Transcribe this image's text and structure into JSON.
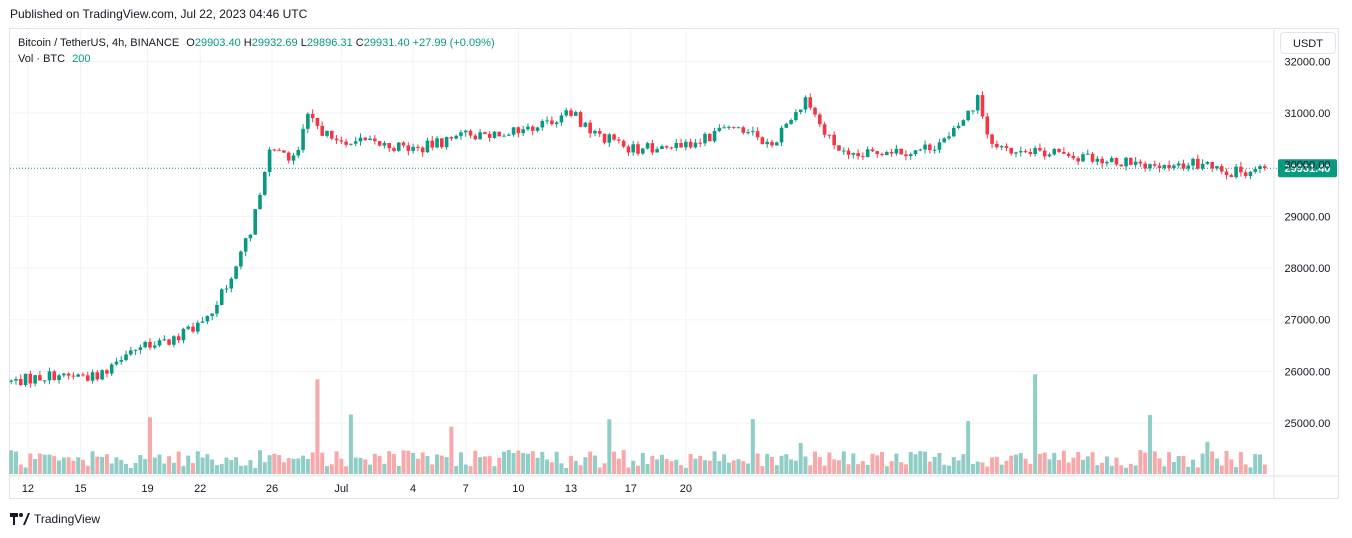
{
  "published": "Published on TradingView.com, Jul 22, 2023 04:46 UTC",
  "legend": {
    "symbol": "Bitcoin / TetherUS, 4h, BINANCE",
    "open_label": "O",
    "open": "29903.40",
    "high_label": "H",
    "high": "29932.69",
    "low_label": "L",
    "low": "29896.31",
    "close_label": "C",
    "close": "29931.40",
    "change": "+27.99 (+0.09%)",
    "vol_label": "Vol · BTC",
    "vol_value": "200"
  },
  "currency_button": "USDT",
  "footer": {
    "brand": "TradingView"
  },
  "colors": {
    "up": "#089981",
    "down": "#f23645",
    "vol_up": "#8fcdc6",
    "vol_down": "#f7a9a9",
    "grid": "#f0f3fa",
    "price_line": "#089981"
  },
  "chart_data": {
    "type": "candlestick",
    "symbol": "BTCUSDT",
    "interval": "4h",
    "y_axis": {
      "ticks": [
        "32000.00",
        "31000.00",
        "30000.00",
        "29000.00",
        "28000.00",
        "27000.00",
        "26000.00",
        "25000.00"
      ],
      "range": [
        24100,
        32200
      ]
    },
    "x_axis": {
      "ticks": [
        "12",
        "15",
        "19",
        "22",
        "26",
        "Jul",
        "4",
        "7",
        "10",
        "13",
        "17",
        "20"
      ]
    },
    "last_price": "29931.40",
    "anchors": [
      [
        0,
        25800
      ],
      [
        20,
        25950
      ],
      [
        36,
        25900
      ],
      [
        48,
        26400
      ],
      [
        66,
        26550
      ],
      [
        84,
        27100
      ],
      [
        90,
        27700
      ],
      [
        100,
        28700
      ],
      [
        108,
        30300
      ],
      [
        118,
        30100
      ],
      [
        124,
        30900
      ],
      [
        134,
        30500
      ],
      [
        170,
        30300
      ],
      [
        188,
        30550
      ],
      [
        216,
        30700
      ],
      [
        234,
        31000
      ],
      [
        244,
        30600
      ],
      [
        260,
        30300
      ],
      [
        286,
        30400
      ],
      [
        302,
        30800
      ],
      [
        318,
        30400
      ],
      [
        332,
        31300
      ],
      [
        340,
        30600
      ],
      [
        350,
        30100
      ],
      [
        366,
        30300
      ],
      [
        378,
        30250
      ],
      [
        392,
        30500
      ],
      [
        404,
        31250
      ],
      [
        410,
        30300
      ],
      [
        450,
        30150
      ],
      [
        466,
        30050
      ],
      [
        480,
        29900
      ],
      [
        500,
        30050
      ],
      [
        510,
        29850
      ],
      [
        524,
        29930
      ]
    ],
    "volume_spikes": [
      [
        20,
        14
      ],
      [
        58,
        60
      ],
      [
        128,
        105
      ],
      [
        142,
        72
      ],
      [
        184,
        60
      ],
      [
        250,
        65
      ],
      [
        310,
        62
      ],
      [
        330,
        35
      ],
      [
        400,
        63
      ],
      [
        428,
        115
      ],
      [
        476,
        62
      ],
      [
        500,
        40
      ]
    ]
  }
}
